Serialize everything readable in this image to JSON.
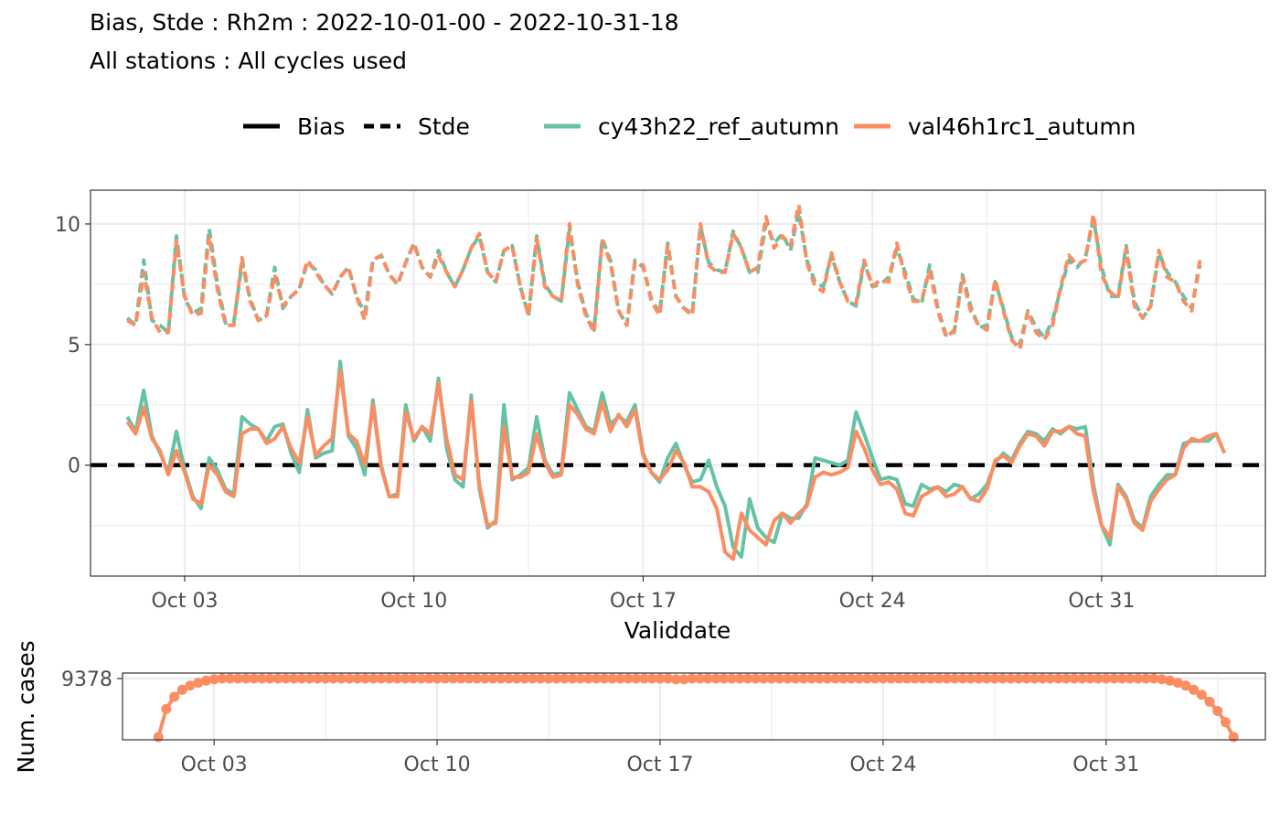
{
  "title": "Bias, Stde : Rh2m : 2022-10-01-00 - 2022-10-31-18",
  "subtitle": "All stations : All cycles used",
  "legend": {
    "linetype": [
      {
        "label": "Bias",
        "dash": "solid"
      },
      {
        "label": "Stde",
        "dash": "dashed"
      }
    ],
    "models": [
      {
        "label": "cy43h22_ref_autumn",
        "color": "#66c2a5"
      },
      {
        "label": "val46h1rc1_autumn",
        "color": "#fc8d62"
      }
    ]
  },
  "chart_data": [
    {
      "type": "line",
      "xlabel": "Validdate",
      "ylabel": "",
      "x_ticks": [
        "Oct 03",
        "Oct 10",
        "Oct 17",
        "Oct 24",
        "Oct 31"
      ],
      "x_start": "2022-10-01 06:00",
      "x_step_hours": 6,
      "xlim": [
        "2022-09-30 03:00",
        "2022-11-05 00:00"
      ],
      "ylim": [
        -4.6,
        11.4
      ],
      "y_ticks": [
        0,
        5,
        10
      ],
      "zero_line": {
        "y": 0,
        "style": "dashed",
        "color": "#000000"
      },
      "grid": true,
      "legend_position": "top",
      "series": [
        {
          "name": "cy43h22_ref_autumn",
          "metric": "Bias",
          "color": "#66c2a5",
          "dash": "solid",
          "values": [
            2.0,
            1.4,
            3.1,
            1.2,
            0.5,
            -0.3,
            1.4,
            -0.2,
            -1.3,
            -1.8,
            0.3,
            -0.2,
            -1.0,
            -1.2,
            2.0,
            1.7,
            1.5,
            1.0,
            1.6,
            1.7,
            0.5,
            -0.3,
            2.3,
            0.3,
            0.5,
            0.6,
            4.3,
            1.2,
            0.7,
            -0.4,
            2.7,
            0.0,
            -1.3,
            -1.2,
            2.5,
            1.0,
            1.6,
            1.0,
            3.6,
            0.7,
            -0.6,
            -0.9,
            2.9,
            -1.0,
            -2.6,
            -2.3,
            2.5,
            -0.6,
            -0.4,
            -0.1,
            2.0,
            0.2,
            -0.4,
            -0.3,
            3.0,
            2.3,
            1.6,
            1.4,
            3.0,
            1.7,
            2.0,
            1.8,
            2.5,
            0.5,
            -0.3,
            -0.7,
            0.3,
            0.9,
            0.0,
            -0.7,
            -0.6,
            0.2,
            -0.9,
            -1.7,
            -3.4,
            -3.8,
            -1.4,
            -2.6,
            -3.0,
            -3.2,
            -2.0,
            -2.2,
            -2.2,
            -1.6,
            0.3,
            0.2,
            0.1,
            0.0,
            0.2,
            2.2,
            1.3,
            0.3,
            -0.6,
            -0.5,
            -0.6,
            -1.6,
            -1.7,
            -0.8,
            -1.0,
            -0.9,
            -1.1,
            -0.8,
            -0.9,
            -1.4,
            -1.2,
            -0.8,
            0.1,
            0.5,
            0.2,
            0.9,
            1.4,
            1.3,
            1.0,
            1.5,
            1.3,
            1.6,
            1.5,
            1.6,
            -0.8,
            -2.5,
            -3.3,
            -0.8,
            -1.3,
            -2.3,
            -2.6,
            -1.3,
            -0.8,
            -0.4,
            -0.4,
            0.9,
            1.0,
            1.0,
            1.0,
            1.3,
            0.5
          ]
        },
        {
          "name": "val46h1rc1_autumn",
          "metric": "Bias",
          "color": "#fc8d62",
          "dash": "solid",
          "values": [
            1.8,
            1.3,
            2.4,
            1.1,
            0.6,
            -0.4,
            0.6,
            -0.3,
            -1.4,
            -1.6,
            0.0,
            -0.4,
            -1.1,
            -1.3,
            1.3,
            1.5,
            1.5,
            0.9,
            1.1,
            1.6,
            0.7,
            0.1,
            2.0,
            0.4,
            0.8,
            1.1,
            3.9,
            1.3,
            1.0,
            0.0,
            2.5,
            -0.1,
            -1.3,
            -1.3,
            2.2,
            1.1,
            1.6,
            1.3,
            3.4,
            1.1,
            -0.4,
            -0.6,
            2.7,
            -0.8,
            -2.5,
            -2.4,
            1.6,
            -0.5,
            -0.5,
            -0.3,
            1.3,
            0.1,
            -0.5,
            -0.4,
            2.5,
            2.1,
            1.5,
            1.3,
            2.6,
            1.4,
            2.1,
            1.6,
            2.3,
            0.4,
            -0.3,
            -0.6,
            -0.2,
            0.6,
            0.1,
            -0.9,
            -0.9,
            -1.1,
            -1.8,
            -3.6,
            -3.9,
            -2.0,
            -2.7,
            -3.0,
            -3.3,
            -2.3,
            -2.0,
            -2.4,
            -2.0,
            -1.7,
            -0.5,
            -0.3,
            -0.4,
            -0.3,
            -0.1,
            1.4,
            0.7,
            -0.2,
            -0.8,
            -0.7,
            -1.0,
            -2.0,
            -2.1,
            -1.3,
            -1.1,
            -0.9,
            -1.3,
            -1.2,
            -0.9,
            -1.4,
            -1.5,
            -1.0,
            0.2,
            0.4,
            0.1,
            0.8,
            1.3,
            1.2,
            0.8,
            1.4,
            1.4,
            1.6,
            1.3,
            1.2,
            -1.1,
            -2.5,
            -3.0,
            -0.9,
            -1.4,
            -2.4,
            -2.7,
            -1.5,
            -1.0,
            -0.6,
            -0.4,
            0.7,
            1.1,
            1.0,
            1.2,
            1.3,
            0.5
          ]
        },
        {
          "name": "cy43h22_ref_autumn",
          "metric": "Stde",
          "color": "#66c2a5",
          "dash": "dashed",
          "values": [
            6.1,
            5.8,
            8.5,
            6.0,
            5.8,
            5.5,
            9.5,
            6.9,
            6.3,
            6.5,
            9.8,
            7.5,
            5.9,
            5.9,
            8.4,
            6.9,
            6.0,
            6.2,
            8.2,
            6.5,
            7.0,
            7.3,
            8.4,
            8.1,
            7.5,
            7.1,
            7.8,
            8.2,
            7.0,
            6.3,
            8.5,
            8.7,
            7.9,
            7.5,
            8.4,
            9.2,
            8.2,
            7.8,
            8.9,
            8.0,
            7.4,
            8.1,
            9.0,
            9.5,
            8.0,
            7.6,
            8.9,
            9.1,
            7.4,
            6.2,
            9.5,
            7.5,
            7.0,
            6.8,
            9.8,
            7.6,
            6.3,
            5.6,
            9.4,
            8.5,
            6.4,
            5.8,
            8.5,
            8.2,
            6.9,
            6.3,
            9.2,
            7.0,
            6.5,
            6.3,
            9.9,
            8.4,
            8.1,
            8.0,
            9.7,
            9.0,
            8.0,
            8.0,
            10.0,
            9.2,
            9.6,
            8.9,
            10.5,
            8.5,
            7.6,
            7.4,
            8.7,
            7.6,
            6.8,
            6.6,
            8.4,
            7.4,
            7.5,
            7.8,
            9.0,
            8.0,
            6.9,
            6.7,
            8.3,
            6.5,
            5.4,
            5.5,
            7.9,
            6.6,
            5.7,
            5.8,
            7.6,
            6.5,
            5.3,
            5.0,
            6.4,
            5.7,
            5.3,
            6.0,
            7.3,
            8.5,
            8.2,
            8.6,
            10.2,
            8.2,
            7.0,
            7.0,
            9.1,
            6.8,
            6.1,
            6.6,
            8.8,
            8.0,
            7.6,
            7.0,
            6.5,
            8.3
          ]
        },
        {
          "name": "val46h1rc1_autumn",
          "metric": "Stde",
          "color": "#fc8d62",
          "dash": "dashed",
          "values": [
            6.0,
            5.8,
            8.0,
            6.1,
            5.5,
            5.5,
            9.3,
            7.0,
            6.2,
            6.3,
            9.5,
            7.3,
            5.8,
            5.8,
            8.6,
            6.8,
            6.0,
            6.2,
            7.9,
            6.6,
            7.0,
            7.3,
            8.5,
            8.0,
            7.5,
            7.1,
            7.8,
            8.2,
            7.0,
            6.0,
            8.5,
            8.7,
            7.9,
            7.5,
            8.4,
            9.2,
            8.2,
            7.8,
            8.7,
            8.0,
            7.4,
            8.1,
            9.0,
            9.6,
            8.0,
            7.6,
            8.9,
            9.1,
            7.4,
            6.2,
            9.4,
            7.4,
            7.0,
            6.8,
            10.0,
            7.5,
            6.2,
            5.5,
            9.3,
            8.4,
            6.4,
            5.8,
            8.4,
            8.3,
            6.8,
            6.2,
            9.1,
            7.0,
            6.5,
            6.2,
            10.0,
            8.3,
            8.0,
            8.0,
            9.6,
            9.0,
            8.0,
            8.2,
            10.3,
            9.0,
            9.5,
            9.1,
            10.8,
            8.4,
            7.4,
            7.2,
            8.8,
            7.6,
            6.8,
            6.7,
            8.5,
            7.4,
            7.7,
            7.6,
            9.2,
            7.8,
            6.8,
            6.8,
            8.1,
            6.4,
            5.3,
            5.6,
            7.8,
            6.4,
            5.8,
            5.6,
            7.7,
            6.4,
            5.2,
            4.8,
            6.4,
            5.5,
            5.2,
            5.8,
            7.4,
            8.7,
            8.3,
            8.5,
            10.4,
            7.9,
            7.2,
            6.9,
            9.0,
            6.6,
            6.1,
            6.6,
            8.9,
            7.8,
            7.6,
            6.8,
            6.4,
            8.5
          ]
        }
      ]
    },
    {
      "type": "line",
      "ylabel": "Num. cases",
      "x_ticks": [
        "Oct 03",
        "Oct 10",
        "Oct 17",
        "Oct 24",
        "Oct 31"
      ],
      "y_ticks": [
        9378
      ],
      "grid": true,
      "series": [
        {
          "name": "val46h1rc1_autumn",
          "color": "#fc8d62",
          "markers": true,
          "values": [
            9295,
            9335,
            9352,
            9362,
            9368,
            9372,
            9375,
            9377,
            9378,
            9378,
            9378,
            9378,
            9378,
            9378,
            9378,
            9378,
            9378,
            9378,
            9378,
            9378,
            9378,
            9378,
            9378,
            9378,
            9378,
            9378,
            9378,
            9378,
            9378,
            9378,
            9378,
            9378,
            9378,
            9378,
            9378,
            9378,
            9378,
            9378,
            9378,
            9378,
            9378,
            9378,
            9378,
            9378,
            9378,
            9378,
            9378,
            9378,
            9378,
            9378,
            9378,
            9378,
            9378,
            9378,
            9378,
            9378,
            9378,
            9378,
            9378,
            9378,
            9378,
            9378,
            9378,
            9378,
            9378,
            9377,
            9377,
            9378,
            9378,
            9378,
            9378,
            9378,
            9378,
            9378,
            9378,
            9378,
            9378,
            9378,
            9378,
            9378,
            9378,
            9378,
            9378,
            9378,
            9378,
            9378,
            9378,
            9378,
            9378,
            9378,
            9378,
            9378,
            9378,
            9378,
            9378,
            9378,
            9378,
            9378,
            9378,
            9378,
            9378,
            9378,
            9378,
            9378,
            9378,
            9378,
            9378,
            9378,
            9378,
            9378,
            9378,
            9378,
            9378,
            9378,
            9378,
            9378,
            9378,
            9378,
            9378,
            9378,
            9378,
            9378,
            9378,
            9378,
            9378,
            9378,
            9377,
            9375,
            9372,
            9368,
            9362,
            9355,
            9345,
            9332,
            9316,
            9295
          ]
        }
      ]
    }
  ]
}
